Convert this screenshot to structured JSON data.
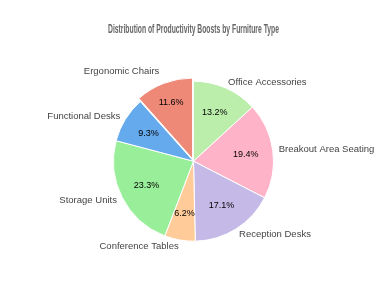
{
  "chart_data": {
    "type": "pie",
    "title": "Distribution of Productivity Boosts by Furniture Type",
    "categories": [
      "Office Accessories",
      "Breakout Area Seating",
      "Reception Desks",
      "Conference Tables",
      "Storage Units",
      "Functional Desks",
      "Ergonomic Chairs"
    ],
    "values": [
      13.2,
      19.4,
      17.1,
      6.2,
      23.3,
      9.3,
      11.6
    ],
    "value_labels": [
      "13.2%",
      "19.4%",
      "17.1%",
      "6.2%",
      "23.3%",
      "9.3%",
      "11.6%"
    ],
    "colors": [
      "#BBEEAA",
      "#FFB3C8",
      "#C5B9E8",
      "#FFCC99",
      "#99EE99",
      "#66AAEE",
      "#EE8877"
    ],
    "data_labels": true
  }
}
